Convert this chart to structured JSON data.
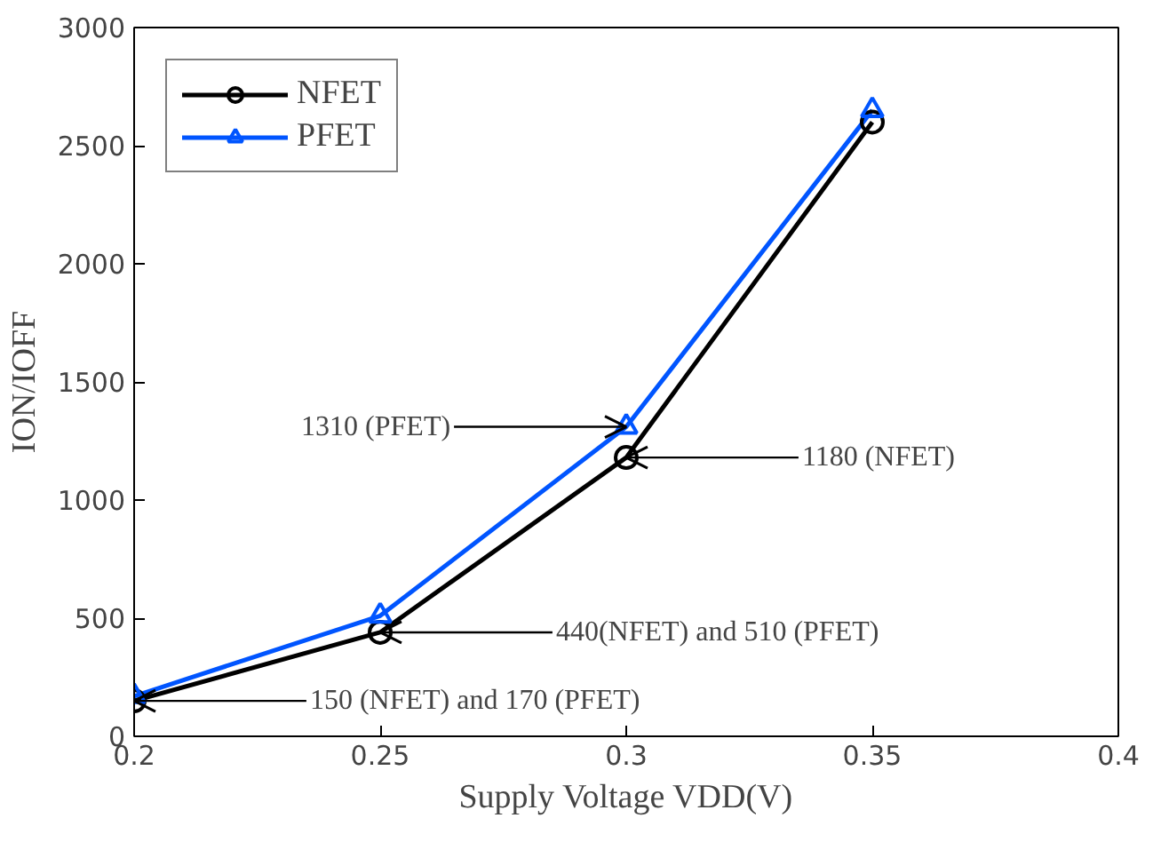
{
  "chart_data": {
    "type": "line",
    "x": [
      0.2,
      0.25,
      0.3,
      0.35
    ],
    "series": [
      {
        "name": "NFET",
        "color": "#000000",
        "marker": "circle",
        "values": [
          150,
          440,
          1180,
          2600
        ]
      },
      {
        "name": "PFET",
        "color": "#0055ff",
        "marker": "triangle",
        "values": [
          170,
          510,
          1310,
          2650
        ]
      }
    ],
    "xlabel": "Supply Voltage VDD(V)",
    "ylabel": "ION/IOFF",
    "xlim": [
      0.2,
      0.4
    ],
    "xticks": [
      0.2,
      0.25,
      0.3,
      0.35,
      0.4
    ],
    "ylim": [
      0,
      3000
    ],
    "yticks": [
      0,
      500,
      1000,
      1500,
      2000,
      2500,
      3000
    ],
    "grid": false,
    "legend": "top left",
    "line_style": "solid",
    "annotations": [
      {
        "text": "1310 (PFET)",
        "x": 0.3,
        "y": 1310
      },
      {
        "text": "1180 (NFET)",
        "x": 0.3,
        "y": 1180
      },
      {
        "text": "440(NFET) and 510 (PFET)",
        "x": 0.25,
        "y": 440
      },
      {
        "text": "150 (NFET) and 170 (PFET)",
        "x": 0.2,
        "y": 150
      }
    ]
  }
}
